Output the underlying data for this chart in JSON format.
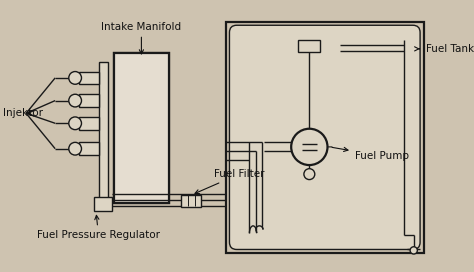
{
  "bg_color": "#cec3b0",
  "line_color": "#1a1a1a",
  "fill_light": "#ddd5c4",
  "fill_white": "#e8e2d8",
  "labels": {
    "intake_manifold": "Intake Manifold",
    "injektor": "Injektor",
    "fuel_filter": "Fuel Filter",
    "fuel_pressure_regulator": "Fuel Pressure Regulator",
    "fuel_tank": "Fuel Tank",
    "fuel_pump": "Fuel Pump"
  },
  "fig_width": 4.74,
  "fig_height": 2.72,
  "dpi": 100
}
